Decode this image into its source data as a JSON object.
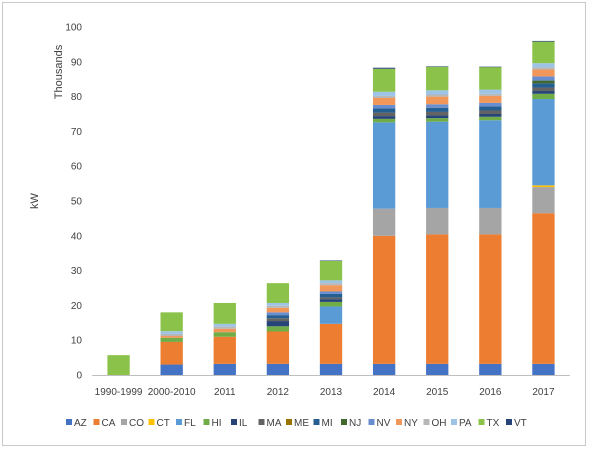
{
  "chart_data": {
    "type": "bar",
    "stacked": true,
    "title": "",
    "xlabel": "",
    "ylabel": "kW",
    "y_units_label": "Thousands",
    "ylim": [
      0,
      100
    ],
    "yticks": [
      0,
      10,
      20,
      30,
      40,
      50,
      60,
      70,
      80,
      90,
      100
    ],
    "grid": false,
    "legend_position": "bottom",
    "categories": [
      "1990-1999",
      "2000-2010",
      "2011",
      "2012",
      "2013",
      "2014",
      "2015",
      "2016",
      "2017"
    ],
    "series": [
      {
        "name": "AZ",
        "color": "#4472C4",
        "values": [
          0,
          3.0,
          3.2,
          3.2,
          3.2,
          3.2,
          3.2,
          3.2,
          3.2
        ]
      },
      {
        "name": "CA",
        "color": "#ED7D31",
        "values": [
          0,
          6.5,
          7.8,
          9.3,
          11.5,
          36.8,
          37.2,
          37.2,
          43.3
        ]
      },
      {
        "name": "CO",
        "color": "#A5A5A5",
        "values": [
          0,
          0,
          0,
          0,
          0,
          7.8,
          7.6,
          7.6,
          7.5
        ]
      },
      {
        "name": "CT",
        "color": "#FFC000",
        "values": [
          0,
          0,
          0,
          0,
          0,
          0,
          0,
          0,
          0.5
        ]
      },
      {
        "name": "FL",
        "color": "#5B9BD5",
        "values": [
          0,
          0,
          0,
          0,
          5.0,
          24.8,
          24.8,
          25.2,
          24.8
        ]
      },
      {
        "name": "HI",
        "color": "#70AD47",
        "values": [
          0,
          1.2,
          1.3,
          1.5,
          1.3,
          1.0,
          1.0,
          1.0,
          1.5
        ]
      },
      {
        "name": "IL",
        "color": "#264478",
        "values": [
          0,
          0,
          0,
          1.5,
          0.8,
          0.8,
          0.8,
          0.8,
          0.8
        ]
      },
      {
        "name": "MA",
        "color": "#636363",
        "values": [
          0,
          0,
          0,
          0.8,
          0.5,
          1.0,
          1.0,
          1.0,
          1.0
        ]
      },
      {
        "name": "ME",
        "color": "#997300",
        "values": [
          0,
          0,
          0,
          0,
          0,
          0,
          0,
          0,
          0
        ]
      },
      {
        "name": "MI",
        "color": "#255E91",
        "values": [
          0,
          0,
          0,
          0.9,
          1.0,
          1.2,
          1.2,
          1.2,
          1.2
        ]
      },
      {
        "name": "NJ",
        "color": "#43682B",
        "values": [
          0,
          0,
          0,
          0,
          0,
          0,
          0,
          0,
          0.8
        ]
      },
      {
        "name": "NV",
        "color": "#698ED0",
        "values": [
          0,
          0,
          0,
          0.8,
          0.7,
          1.0,
          1.0,
          1.0,
          1.2
        ]
      },
      {
        "name": "NY",
        "color": "#F1975A",
        "values": [
          0,
          0.5,
          1.0,
          1.3,
          1.8,
          2.0,
          2.2,
          2.0,
          2.0
        ]
      },
      {
        "name": "OH",
        "color": "#B7B7B7",
        "values": [
          0,
          0.6,
          0.6,
          0.6,
          0.6,
          0.6,
          0.6,
          0.6,
          0.6
        ]
      },
      {
        "name": "PA",
        "color": "#9DC3E6",
        "values": [
          0,
          0.8,
          0.8,
          0.8,
          0.8,
          1.2,
          1.2,
          1.2,
          1.2
        ]
      },
      {
        "name": "TX",
        "color": "#8BC34A",
        "values": [
          5.7,
          5.4,
          6.0,
          5.7,
          5.6,
          6.6,
          6.8,
          6.5,
          6.2
        ]
      },
      {
        "name": "VT",
        "color": "#264478",
        "values": [
          0,
          0,
          0,
          0,
          0.1,
          0.3,
          0.1,
          0.1,
          0.2
        ]
      }
    ]
  }
}
